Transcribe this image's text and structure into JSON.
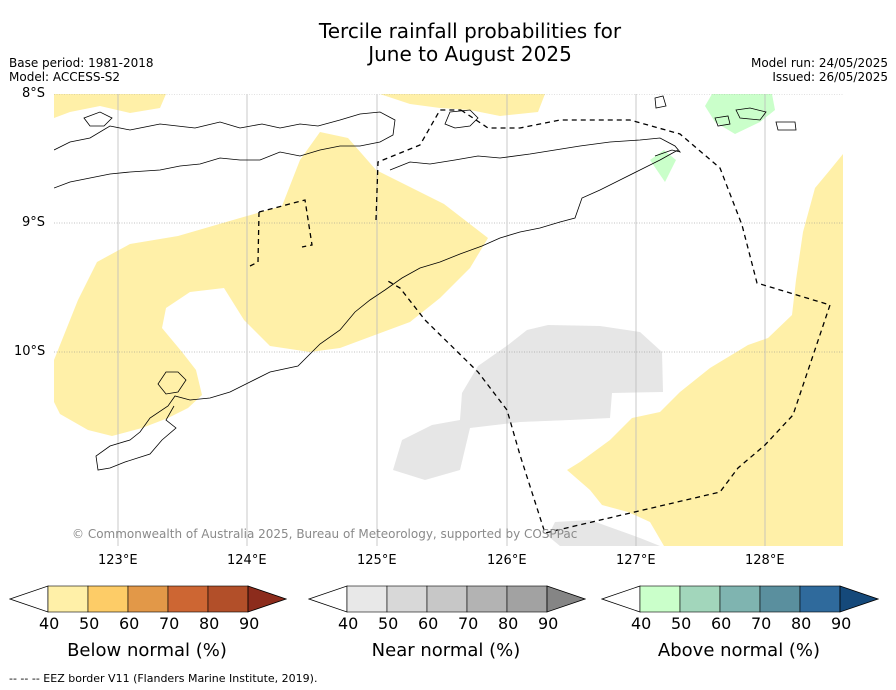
{
  "title_line1": "Tercile rainfall probabilities for",
  "title_line2": "June to August 2025",
  "meta_left": {
    "base_period": "Base period: 1981-2018",
    "model": "Model: ACCESS-S2"
  },
  "meta_right": {
    "model_run": "Model run: 24/05/2025",
    "issued": "Issued: 26/05/2025"
  },
  "lat_labels": [
    "8°S",
    "9°S",
    "10°S"
  ],
  "lon_labels": [
    "123°E",
    "124°E",
    "125°E",
    "126°E",
    "127°E",
    "128°E"
  ],
  "copyright": "© Commonwealth of Australia 2025, Bureau of Meteorology, supported by COSPPac",
  "colorbars": [
    {
      "label": "Below normal (%)",
      "ticks": [
        "40",
        "50",
        "60",
        "70",
        "80",
        "90"
      ],
      "colors": [
        "#fff0a8",
        "#fdcc67",
        "#e29848",
        "#cd6633",
        "#b24f29",
        "#8c2c1c"
      ]
    },
    {
      "label": "Near normal (%)",
      "ticks": [
        "40",
        "50",
        "60",
        "70",
        "80",
        "90"
      ],
      "colors": [
        "#e8e8e8",
        "#d8d8d8",
        "#c7c7c7",
        "#b3b3b3",
        "#a2a2a2",
        "#858585"
      ]
    },
    {
      "label": "Above normal (%)",
      "ticks": [
        "40",
        "50",
        "60",
        "70",
        "80",
        "90"
      ],
      "colors": [
        "#caffca",
        "#a2d6bb",
        "#7fb4b0",
        "#5a8f9e",
        "#2f6a9c",
        "#15497a"
      ]
    }
  ],
  "footnote": "--  --  -- EEZ border V11 (Flanders Marine Institute, 2019)."
}
